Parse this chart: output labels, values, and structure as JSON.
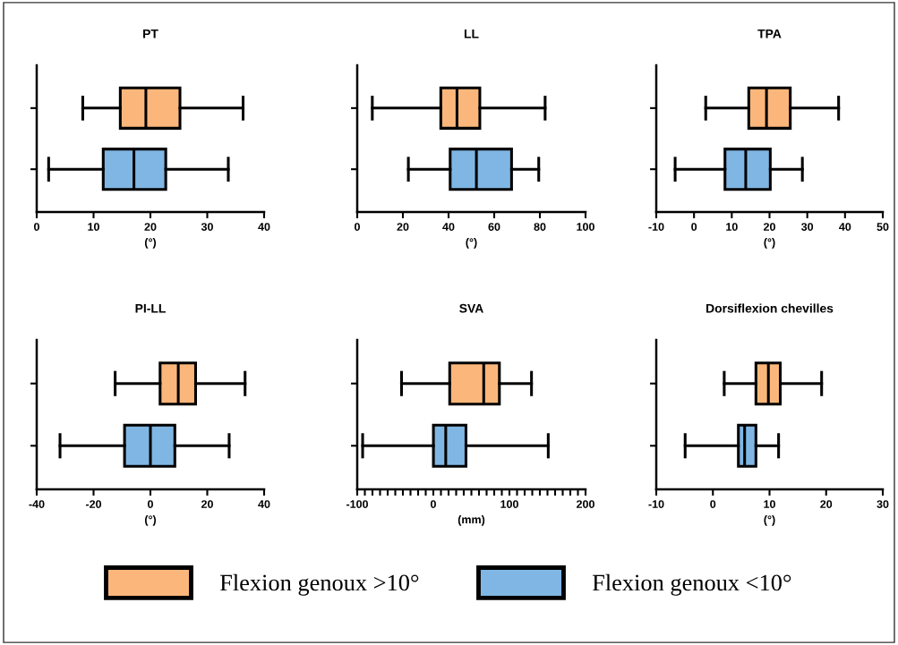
{
  "chart_data": [
    {
      "type": "box",
      "title": "PT",
      "xlabel": "(°)",
      "orientation": "horizontal",
      "categories": [
        null,
        null
      ],
      "xlim": [
        0,
        40
      ],
      "xticks": [
        0,
        10,
        20,
        30,
        40
      ],
      "tick_labels": "x",
      "grid": false,
      "legend": "bottom",
      "series": [
        {
          "name": "Flexion genoux >10°",
          "color": "#fbb77b",
          "boxes": [
            {
              "low": 8.1,
              "q1": 14.7,
              "median": 19.2,
              "q3": 25.2,
              "high": 36.3
            },
            null
          ]
        },
        {
          "name": "Flexion genoux <10°",
          "color": "#80b6e3",
          "boxes": [
            null,
            {
              "low": 2.1,
              "q1": 11.7,
              "median": 17.1,
              "q3": 22.7,
              "high": 33.7
            }
          ]
        }
      ]
    },
    {
      "type": "box",
      "title": "LL",
      "xlabel": "(°)",
      "orientation": "horizontal",
      "categories": [
        null,
        null
      ],
      "xlim": [
        0,
        100
      ],
      "xticks": [
        0,
        20,
        40,
        60,
        80,
        100
      ],
      "tick_labels": "x",
      "grid": false,
      "series": [
        {
          "color": "#fbb77b",
          "boxes": [
            {
              "low": 6.6,
              "q1": 36.6,
              "median": 43.7,
              "q3": 53.7,
              "high": 82.3
            },
            null
          ]
        },
        {
          "color": "#80b6e3",
          "boxes": [
            null,
            {
              "low": 22.4,
              "q1": 40.7,
              "median": 52.2,
              "q3": 67.6,
              "high": 79.5
            }
          ]
        }
      ]
    },
    {
      "type": "box",
      "title": "TPA",
      "xlabel": "(°)",
      "orientation": "horizontal",
      "categories": [
        null,
        null
      ],
      "xlim": [
        -10,
        50
      ],
      "xticks": [
        -10,
        0,
        10,
        20,
        30,
        40,
        50
      ],
      "tick_labels": "x",
      "grid": false,
      "series": [
        {
          "color": "#fbb77b",
          "boxes": [
            {
              "low": 3.1,
              "q1": 14.5,
              "median": 19.2,
              "q3": 25.5,
              "high": 38.3
            },
            null
          ]
        },
        {
          "color": "#80b6e3",
          "boxes": [
            null,
            {
              "low": -5.0,
              "q1": 8.2,
              "median": 13.7,
              "q3": 20.2,
              "high": 28.7
            }
          ]
        }
      ]
    },
    {
      "type": "box",
      "title": "PI-LL",
      "xlabel": "(°)",
      "orientation": "horizontal",
      "categories": [
        null,
        null
      ],
      "xlim": [
        -40,
        40
      ],
      "xticks": [
        -40,
        -20,
        0,
        20,
        40
      ],
      "tick_labels": "x",
      "grid": false,
      "series": [
        {
          "color": "#fbb77b",
          "boxes": [
            {
              "low": -12.4,
              "q1": 3.4,
              "median": 9.8,
              "q3": 15.9,
              "high": 33.3
            },
            null
          ]
        },
        {
          "color": "#80b6e3",
          "boxes": [
            null,
            {
              "low": -31.8,
              "q1": -9.1,
              "median": 0,
              "q3": 8.6,
              "high": 27.7
            }
          ]
        }
      ]
    },
    {
      "type": "box",
      "title": "SVA",
      "xlabel": "(mm)",
      "orientation": "horizontal",
      "categories": [
        null,
        null
      ],
      "xlim": [
        -100,
        200
      ],
      "xticks": [
        -100,
        {
          "value": -90,
          "label": null
        },
        {
          "value": -80,
          "label": null
        },
        {
          "value": -70,
          "label": null
        },
        {
          "value": -60,
          "label": null
        },
        {
          "value": -50,
          "label": null
        },
        {
          "value": -40,
          "label": null
        },
        {
          "value": -30,
          "label": null
        },
        {
          "value": -20,
          "label": null
        },
        {
          "value": -10,
          "label": null
        },
        0,
        {
          "value": 10,
          "label": null
        },
        {
          "value": 20,
          "label": null
        },
        {
          "value": 30,
          "label": null
        },
        {
          "value": 40,
          "label": null
        },
        {
          "value": 50,
          "label": null
        },
        {
          "value": 60,
          "label": null
        },
        {
          "value": 70,
          "label": null
        },
        {
          "value": 80,
          "label": null
        },
        {
          "value": 90,
          "label": null
        },
        100,
        {
          "value": 110,
          "label": null
        },
        {
          "value": 120,
          "label": null
        },
        {
          "value": 130,
          "label": null
        },
        {
          "value": 140,
          "label": null
        },
        {
          "value": 150,
          "label": null
        },
        {
          "value": 160,
          "label": null
        },
        {
          "value": 170,
          "label": null
        },
        {
          "value": 180,
          "label": null
        },
        {
          "value": 190,
          "label": null
        },
        200
      ],
      "tick_labels": "x",
      "grid": false,
      "series": [
        {
          "color": "#fbb77b",
          "boxes": [
            {
              "low": -41.8,
              "q1": 21.5,
              "median": 66.2,
              "q3": 86.8,
              "high": 129
            },
            null
          ]
        },
        {
          "color": "#80b6e3",
          "boxes": [
            null,
            {
              "low": -92.9,
              "q1": 0.1,
              "median": 16.3,
              "q3": 42.9,
              "high": 151
            }
          ]
        }
      ]
    },
    {
      "type": "box",
      "title": "Dorsiflexion chevilles",
      "xlabel": "(°)",
      "orientation": "horizontal",
      "categories": [
        null,
        null
      ],
      "xlim": [
        -10,
        30
      ],
      "xticks": [
        -10,
        0,
        10,
        20,
        30
      ],
      "tick_labels": "x",
      "grid": false,
      "series": [
        {
          "color": "#fbb77b",
          "boxes": [
            {
              "low": 2.0,
              "q1": 7.6,
              "median": 9.8,
              "q3": 11.9,
              "high": 19.2
            },
            null
          ]
        },
        {
          "color": "#80b6e3",
          "boxes": [
            null,
            {
              "low": -4.9,
              "q1": 4.5,
              "median": 5.6,
              "q3": 7.6,
              "high": 11.6
            }
          ]
        }
      ]
    }
  ]
}
